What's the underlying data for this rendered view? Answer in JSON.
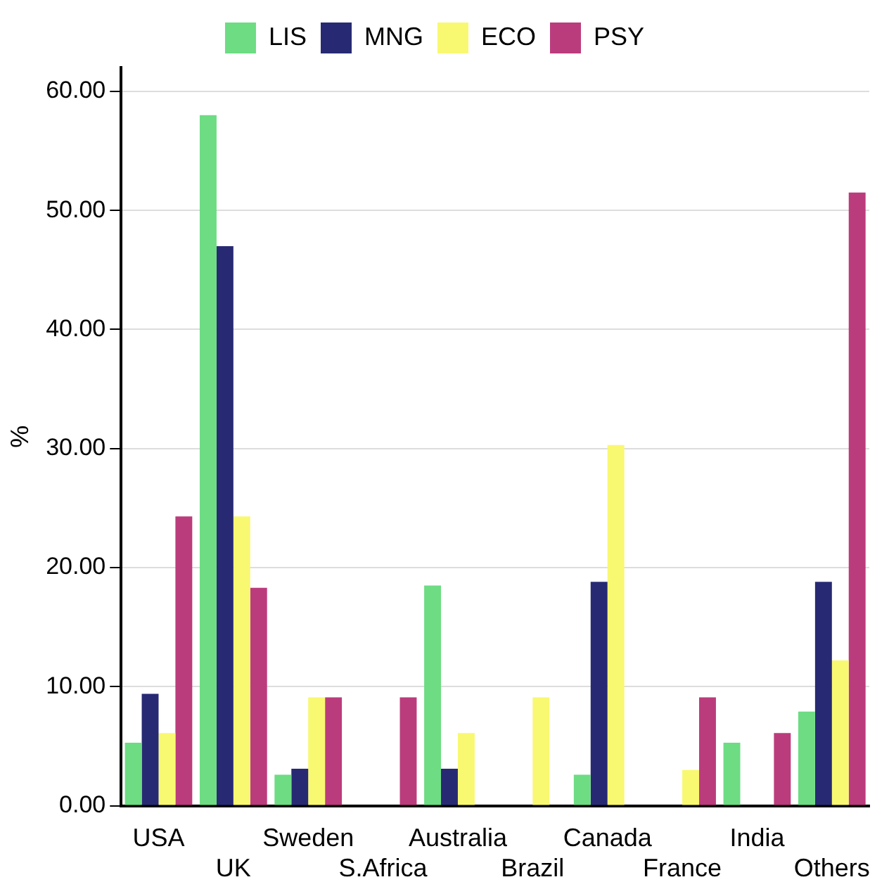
{
  "chart_data": {
    "type": "bar",
    "ylabel": "%",
    "categories": [
      "USA",
      "UK",
      "Sweden",
      "S.Africa",
      "Australia",
      "Brazil",
      "Canada",
      "France",
      "India",
      "Others"
    ],
    "series": [
      {
        "name": "LIS",
        "color": "#6ddc83",
        "values": [
          5.3,
          58.0,
          2.6,
          0,
          18.5,
          0,
          2.6,
          0,
          5.3,
          7.9
        ]
      },
      {
        "name": "MNG",
        "color": "#272a72",
        "values": [
          9.4,
          47.0,
          3.1,
          0,
          3.1,
          0,
          18.8,
          0,
          0,
          18.8
        ]
      },
      {
        "name": "ECO",
        "color": "#f9f871",
        "values": [
          6.1,
          24.3,
          9.1,
          0,
          6.1,
          9.1,
          30.3,
          3.0,
          0,
          12.2
        ]
      },
      {
        "name": "PSY",
        "color": "#bb3c7c",
        "values": [
          24.3,
          18.3,
          9.1,
          9.1,
          0,
          0,
          0,
          9.1,
          6.1,
          51.5
        ]
      }
    ],
    "ylim": [
      0,
      62
    ],
    "yticks": [
      {
        "value": 0,
        "label": "0.00"
      },
      {
        "value": 10,
        "label": "10.00"
      },
      {
        "value": 20,
        "label": "20.00"
      },
      {
        "value": 30,
        "label": "30.00"
      },
      {
        "value": 40,
        "label": "40.00"
      },
      {
        "value": 50,
        "label": "50.00"
      },
      {
        "value": 60,
        "label": "60.00"
      }
    ],
    "grid": "y",
    "legend": "top"
  }
}
